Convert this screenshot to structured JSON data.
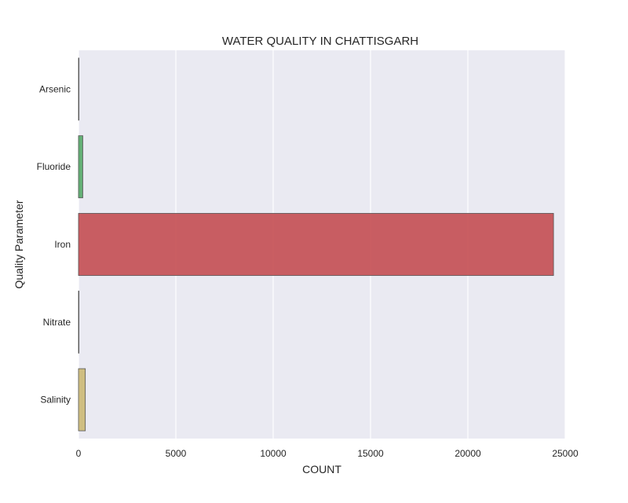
{
  "chart_data": {
    "type": "bar",
    "orientation": "horizontal",
    "title": "WATER QUALITY IN CHATTISGARH",
    "xlabel": "COUNT",
    "ylabel": "Quality Parameter",
    "categories": [
      "Arsenic",
      "Fluoride",
      "Iron",
      "Nitrate",
      "Salinity"
    ],
    "values": [
      15,
      220,
      24400,
      10,
      350
    ],
    "colors": [
      "#4c72b0",
      "#55a868",
      "#c44e52",
      "#8172b2",
      "#ccb974"
    ],
    "xlim": [
      0,
      25000
    ],
    "xticks": [
      0,
      5000,
      10000,
      15000,
      20000,
      25000
    ],
    "xtick_labels": [
      "0",
      "5000",
      "10000",
      "15000",
      "20000",
      "25000"
    ],
    "grid": true,
    "background": "#eaeaf2"
  }
}
